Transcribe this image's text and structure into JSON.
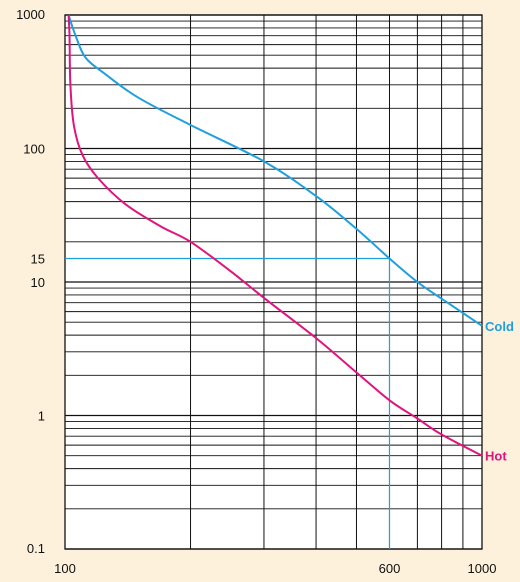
{
  "chart_data": {
    "type": "line",
    "title": "",
    "xlabel": "",
    "ylabel": "",
    "x_scale": "log",
    "y_scale": "log",
    "xlim": [
      100,
      1000
    ],
    "ylim": [
      0.1,
      1000
    ],
    "x_tick_labels": [
      {
        "value": 100,
        "label": "100"
      },
      {
        "value": 600,
        "label": "600"
      },
      {
        "value": 1000,
        "label": "1000"
      }
    ],
    "y_tick_labels": [
      {
        "value": 0.1,
        "label": "0.1"
      },
      {
        "value": 1,
        "label": "1"
      },
      {
        "value": 10,
        "label": "10"
      },
      {
        "value": 15,
        "label": "15"
      },
      {
        "value": 100,
        "label": "100"
      },
      {
        "value": 1000,
        "label": "1000"
      }
    ],
    "grid": true,
    "series": [
      {
        "name": "Cold",
        "color": "#1ea0e0",
        "points": [
          [
            102,
            1000
          ],
          [
            106,
            700
          ],
          [
            112,
            480
          ],
          [
            125,
            360
          ],
          [
            150,
            240
          ],
          [
            200,
            150
          ],
          [
            300,
            80
          ],
          [
            400,
            44
          ],
          [
            500,
            25
          ],
          [
            600,
            15
          ],
          [
            700,
            10
          ],
          [
            800,
            7.5
          ],
          [
            1000,
            4.7
          ]
        ]
      },
      {
        "name": "Hot",
        "color": "#e0147c",
        "points": [
          [
            102,
            1000
          ],
          [
            102.5,
            700
          ],
          [
            103,
            300
          ],
          [
            105,
            150
          ],
          [
            110,
            90
          ],
          [
            120,
            60
          ],
          [
            140,
            38
          ],
          [
            170,
            26
          ],
          [
            200,
            20
          ],
          [
            250,
            12
          ],
          [
            300,
            7.6
          ],
          [
            400,
            3.8
          ],
          [
            500,
            2.1
          ],
          [
            600,
            1.3
          ],
          [
            700,
            0.95
          ],
          [
            800,
            0.72
          ],
          [
            1000,
            0.5
          ]
        ]
      }
    ],
    "reference_lines": [
      {
        "x": 600,
        "y": 15,
        "color": "#1ea0e0"
      }
    ]
  }
}
